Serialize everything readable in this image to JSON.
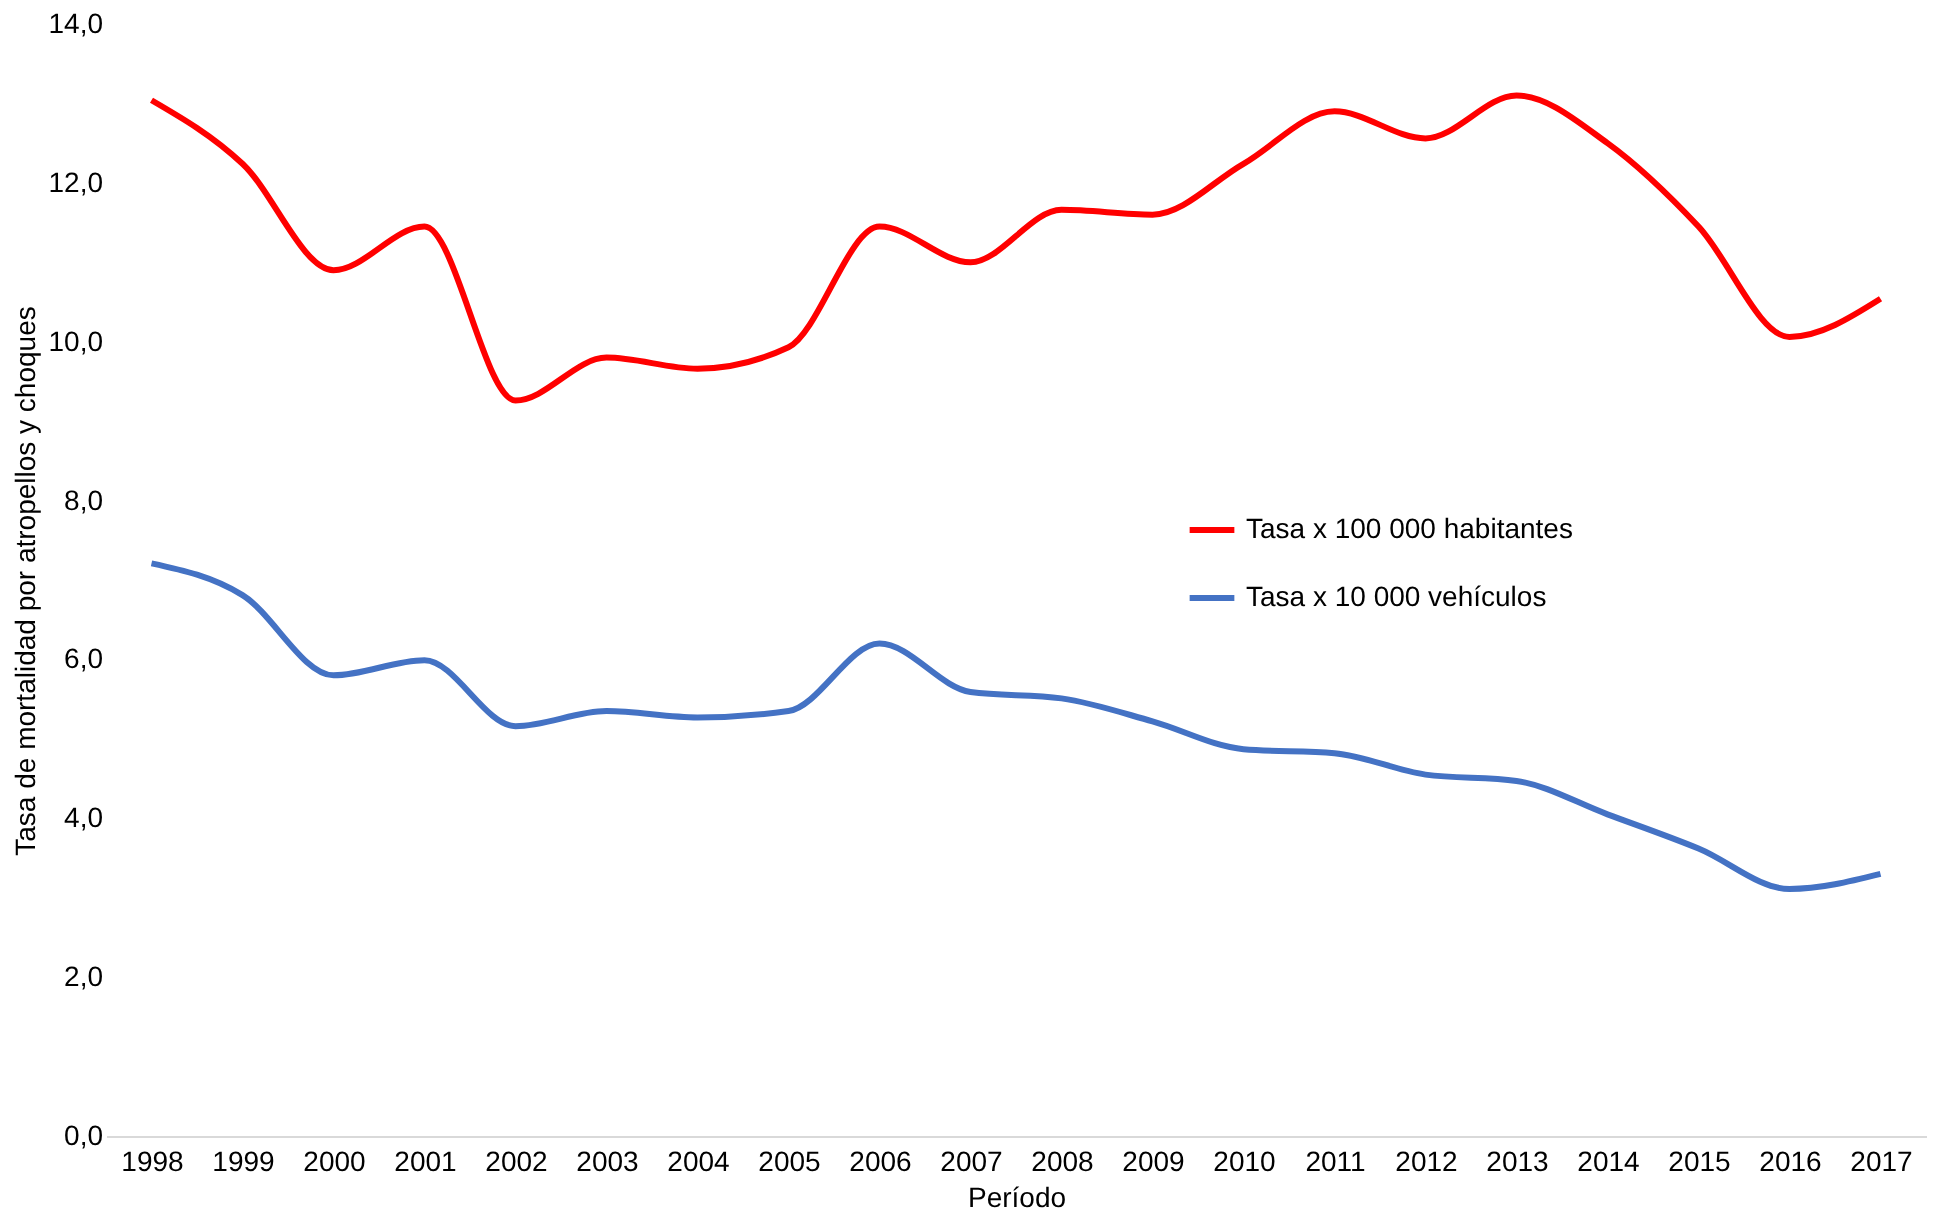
{
  "chart_data": {
    "type": "line",
    "xlabel": "Período",
    "ylabel": "Tasa de mortalidad por atropellos y choques",
    "categories": [
      "1998",
      "1999",
      "2000",
      "2001",
      "2002",
      "2003",
      "2004",
      "2005",
      "2006",
      "2007",
      "2008",
      "2009",
      "2010",
      "2011",
      "2012",
      "2013",
      "2014",
      "2015",
      "2016",
      "2017"
    ],
    "series": [
      {
        "name": "Tasa x 100 000 habitantes",
        "color": "#ff0000",
        "values": [
          13.04,
          12.24,
          10.9,
          11.45,
          9.26,
          9.8,
          9.66,
          9.93,
          11.45,
          11.0,
          11.66,
          11.6,
          12.24,
          12.9,
          12.56,
          13.1,
          12.5,
          11.45,
          10.06,
          10.54
        ]
      },
      {
        "name": "Tasa x 10 000 vehículos",
        "color": "#4472c4",
        "values": [
          7.21,
          6.81,
          5.8,
          5.99,
          5.16,
          5.35,
          5.27,
          5.35,
          6.2,
          5.59,
          5.51,
          5.22,
          4.87,
          4.82,
          4.55,
          4.47,
          4.05,
          3.62,
          3.11,
          3.3
        ]
      }
    ],
    "ylim": [
      0,
      14
    ],
    "yticks": [
      {
        "value": 0,
        "label": "0,0"
      },
      {
        "value": 2,
        "label": "2,0"
      },
      {
        "value": 4,
        "label": "4,0"
      },
      {
        "value": 6,
        "label": "6,0"
      },
      {
        "value": 8,
        "label": "8,0"
      },
      {
        "value": 10,
        "label": "10,0"
      },
      {
        "value": 12,
        "label": "12,0"
      },
      {
        "value": 14,
        "label": "14,0"
      }
    ],
    "grid": false,
    "legend": "right",
    "marker": "none",
    "line_style": "solid"
  }
}
